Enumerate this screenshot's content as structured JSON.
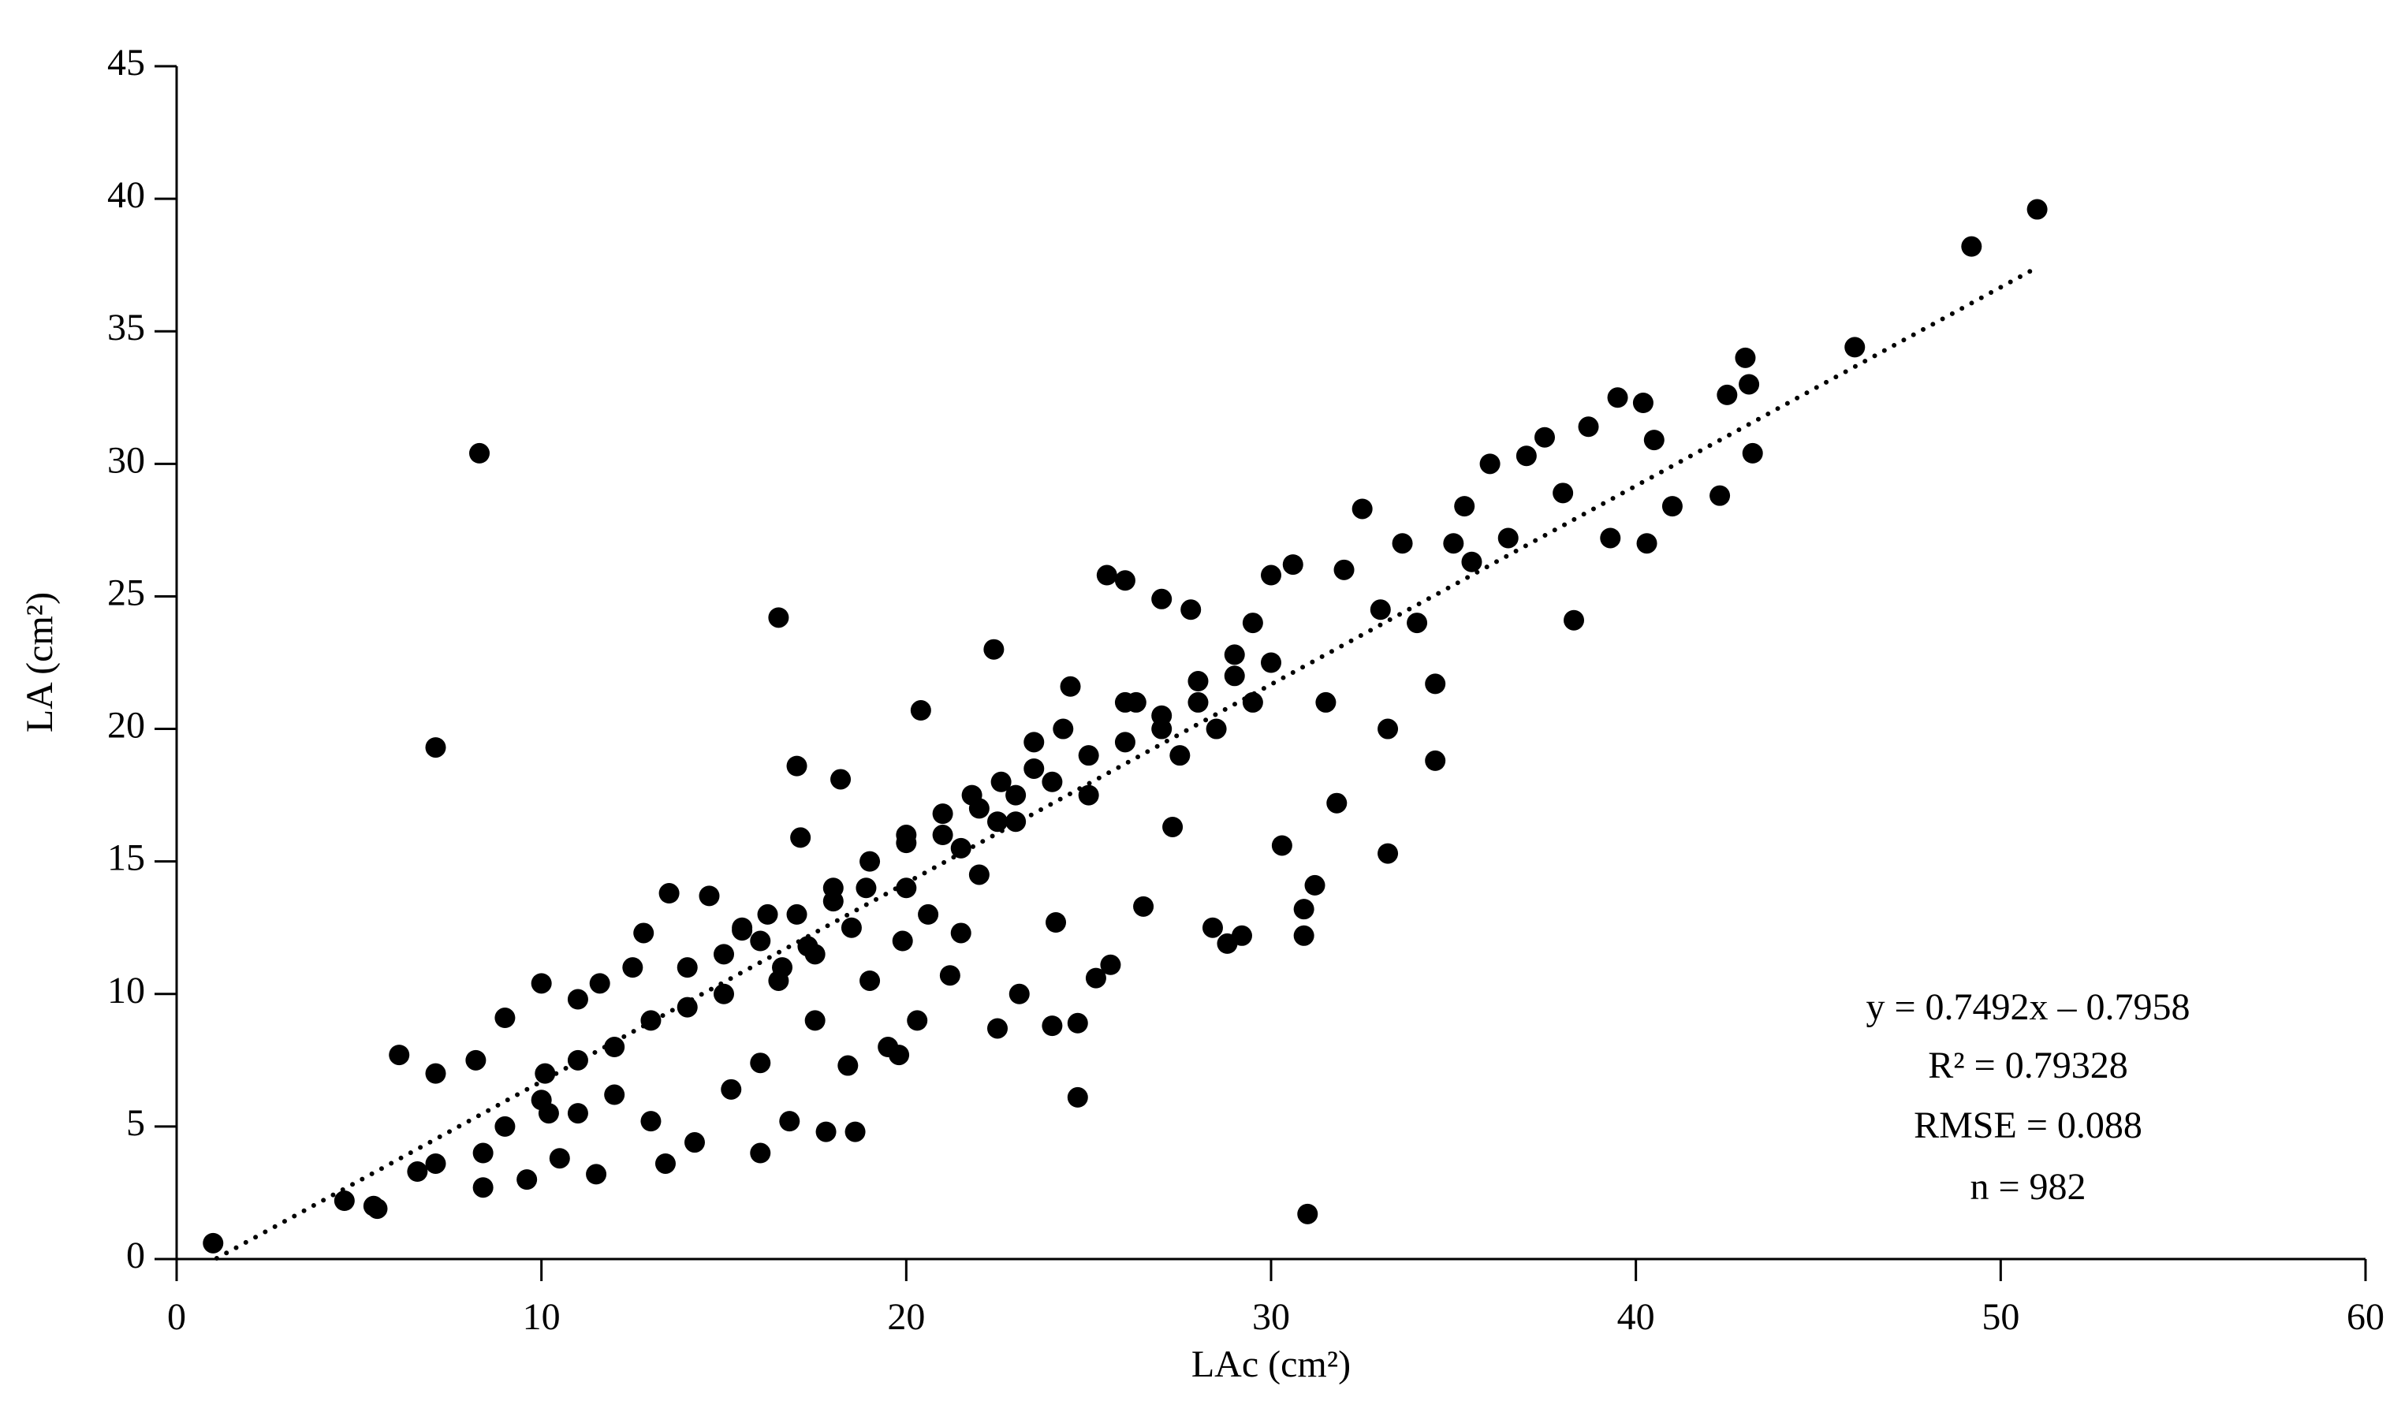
{
  "chart_data": {
    "type": "scatter",
    "x_label": "LAc (cm²)",
    "y_label": "LA (cm²)",
    "annotations": [
      "y = 0.7492x – 0.7958",
      "R² = 0.79328",
      "RMSE = 0.088",
      "n = 982"
    ],
    "color": "#000000",
    "xlim": [
      0,
      60
    ],
    "xticks": [
      0,
      10,
      20,
      30,
      40,
      50,
      60
    ],
    "ylim": [
      0,
      45
    ],
    "yticks": [
      0,
      5,
      10,
      15,
      20,
      25,
      30,
      35,
      40,
      45
    ],
    "grid": false,
    "x": [
      1.0,
      4.6,
      5.4,
      5.5,
      6.1,
      6.6,
      7.1,
      7.1,
      7.1,
      8.3,
      8.2,
      8.4,
      8.4,
      9.0,
      9.6,
      10.0,
      10.1,
      10.2,
      10.5,
      11.0,
      11.0,
      11.5,
      11.6,
      12.0,
      12.5,
      12.8,
      13.0,
      13.5,
      13.4,
      14.0,
      14.2,
      14.6,
      15.0,
      15.2,
      15.5,
      16.0,
      16.0,
      16.2,
      16.5,
      16.6,
      16.8,
      17.0,
      17.1,
      17.3,
      17.5,
      17.8,
      18.0,
      18.2,
      18.4,
      18.6,
      18.9,
      19.0,
      19.5,
      19.8,
      19.9,
      20.0,
      20.3,
      20.4,
      20.6,
      21.0,
      21.2,
      21.5,
      21.8,
      22.0,
      22.4,
      22.5,
      22.6,
      23.0,
      23.1,
      23.5,
      24.0,
      24.1,
      24.3,
      24.5,
      24.7,
      24.7,
      25.0,
      25.2,
      25.5,
      25.6,
      26.0,
      26.3,
      26.5,
      27.0,
      27.0,
      27.3,
      27.8,
      28.0,
      28.4,
      28.8,
      29.0,
      29.2,
      29.5,
      30.0,
      30.3,
      30.6,
      30.9,
      30.9,
      31.0,
      31.2,
      31.5,
      31.8,
      32.0,
      32.5,
      33.0,
      33.2,
      33.2,
      33.6,
      34.0,
      34.5,
      34.5,
      35.0,
      35.3,
      35.5,
      36.0,
      36.5,
      37.0,
      37.5,
      38.0,
      38.3,
      38.7,
      39.3,
      39.5,
      40.2,
      40.3,
      40.5,
      41.0,
      42.3,
      42.5,
      43.0,
      43.1,
      43.2,
      46.0,
      49.2,
      51.0,
      14,
      15,
      16,
      17,
      18,
      19,
      20,
      21,
      22,
      23,
      24,
      25,
      26,
      27,
      28,
      29,
      30,
      17.5,
      16.5,
      15.5,
      18.5,
      20,
      21.5,
      22.5,
      23.5,
      26,
      27.5,
      28.5,
      29.5,
      12,
      11,
      13,
      10,
      9
    ],
    "values": [
      0.6,
      2.2,
      2.0,
      1.9,
      7.7,
      3.3,
      7.0,
      3.6,
      19.3,
      30.4,
      7.5,
      2.7,
      4.0,
      9.1,
      3.0,
      10.4,
      7.0,
      5.5,
      3.8,
      5.5,
      9.8,
      3.2,
      10.4,
      6.2,
      11.0,
      12.3,
      5.2,
      13.8,
      3.6,
      9.5,
      4.4,
      13.7,
      11.5,
      6.4,
      12.4,
      4.0,
      7.4,
      13.0,
      24.2,
      11.0,
      5.2,
      18.6,
      15.9,
      11.8,
      9.0,
      4.8,
      13.5,
      18.1,
      7.3,
      4.8,
      14.0,
      10.5,
      8.0,
      7.7,
      12.0,
      15.7,
      9.0,
      20.7,
      13.0,
      16.8,
      10.7,
      12.3,
      17.5,
      14.5,
      23.0,
      8.7,
      18.0,
      16.5,
      10.0,
      19.5,
      8.8,
      12.7,
      20.0,
      21.6,
      6.1,
      8.9,
      17.5,
      10.6,
      25.8,
      11.1,
      25.6,
      21.0,
      13.3,
      24.9,
      20.0,
      16.3,
      24.5,
      21.8,
      12.5,
      11.9,
      22.8,
      12.2,
      24.0,
      25.8,
      15.6,
      26.2,
      12.2,
      13.2,
      1.7,
      14.1,
      21.0,
      17.2,
      26.0,
      28.3,
      24.5,
      15.3,
      20.0,
      27.0,
      24.0,
      18.8,
      21.7,
      27.0,
      28.4,
      26.3,
      30.0,
      27.2,
      30.3,
      31.0,
      28.9,
      24.1,
      31.4,
      27.2,
      32.5,
      32.3,
      27.0,
      30.9,
      28.4,
      28.8,
      32.6,
      34.0,
      33.0,
      30.4,
      34.4,
      38.2,
      39.6,
      11,
      10,
      12,
      13,
      14,
      15,
      16,
      16,
      17,
      17.5,
      18,
      19,
      19.5,
      20.5,
      21,
      22,
      22.5,
      11.5,
      10.5,
      12.5,
      12.5,
      14,
      15.5,
      16.5,
      18.5,
      21,
      19,
      20,
      21,
      8,
      7.5,
      9,
      6,
      5
    ],
    "trendline": {
      "x": [
        1.1,
        51.0
      ],
      "y": [
        0.03,
        37.41
      ]
    }
  }
}
